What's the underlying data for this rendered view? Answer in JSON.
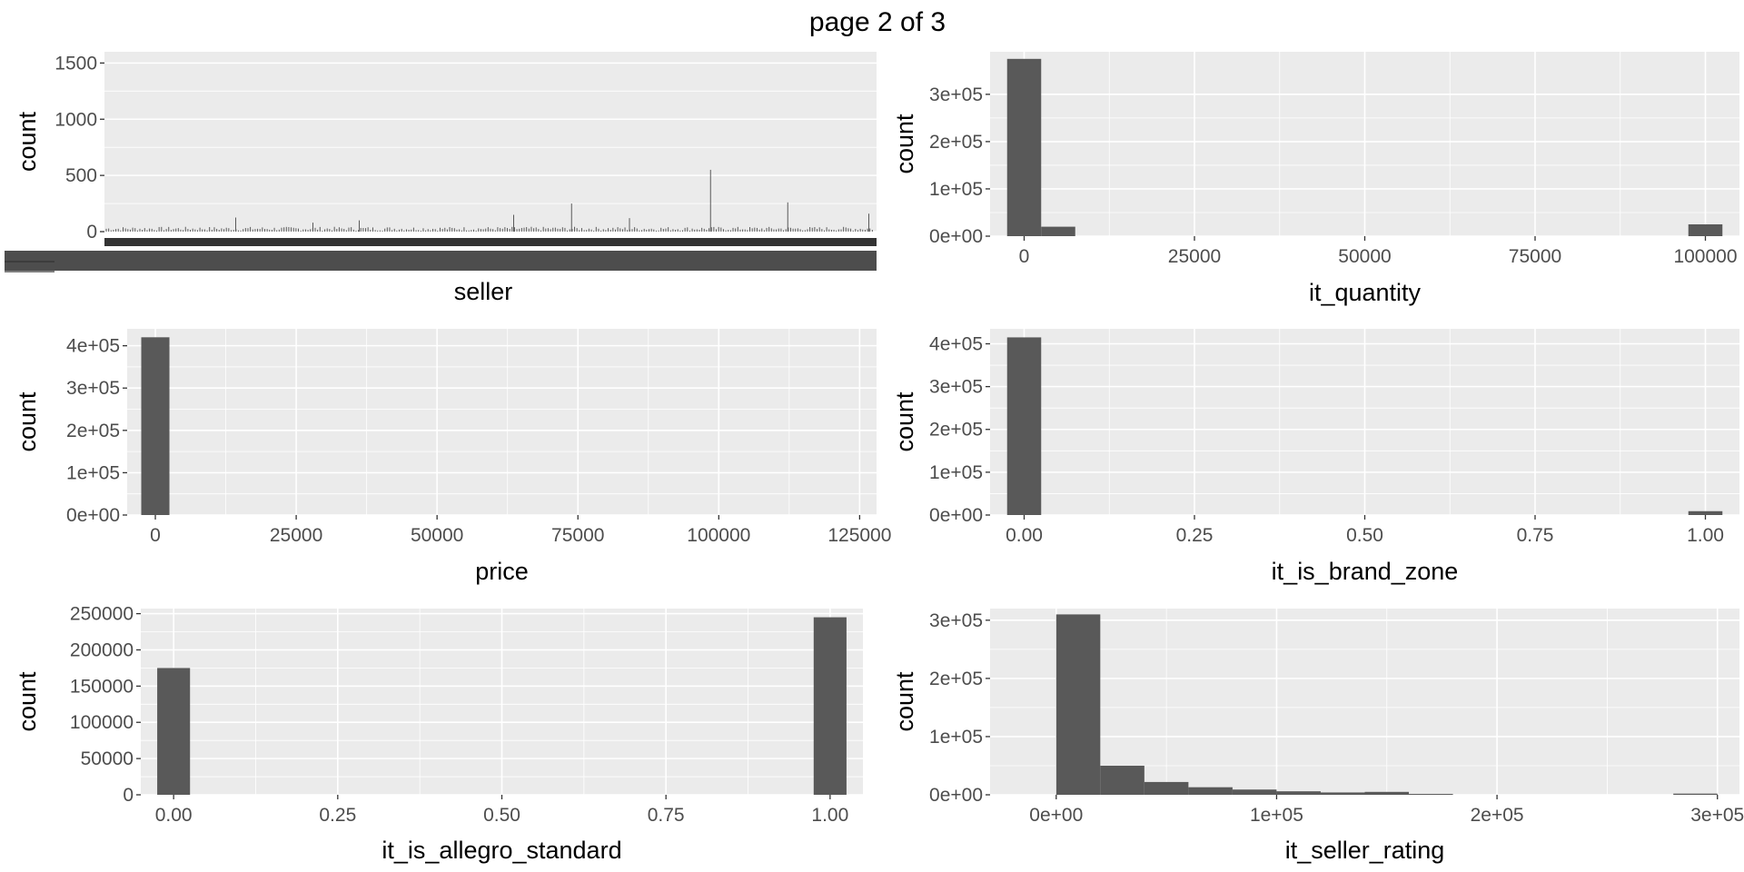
{
  "page": {
    "title": "page 2 of 3"
  },
  "colors": {
    "panel_bg": "#ebebeb",
    "bar_fill": "#595959",
    "grid": "#ffffff",
    "text": "#4d4d4d"
  },
  "chart_data": [
    {
      "id": "seller",
      "type": "bar",
      "xlabel": "seller",
      "ylabel": "count",
      "ylim": [
        0,
        1600
      ],
      "yticks": [
        0,
        500,
        1000,
        1500
      ],
      "ytick_labels": [
        "0",
        "500",
        "1000",
        "1500"
      ],
      "xtick_labels_note": "thousands of overlapping category labels rendered as a solid band",
      "notable_spikes": [
        {
          "position": 0.17,
          "value": 125
        },
        {
          "position": 0.27,
          "value": 80
        },
        {
          "position": 0.33,
          "value": 100
        },
        {
          "position": 0.53,
          "value": 150
        },
        {
          "position": 0.605,
          "value": 250
        },
        {
          "position": 0.68,
          "value": 120
        },
        {
          "position": 0.785,
          "value": 550
        },
        {
          "position": 0.885,
          "value": 260
        },
        {
          "position": 0.99,
          "value": 160
        }
      ]
    },
    {
      "id": "it_quantity",
      "type": "bar",
      "xlabel": "it_quantity",
      "ylabel": "count",
      "bin_width": 5000,
      "xlim": [
        -5000,
        105000
      ],
      "ylim": [
        0,
        390000
      ],
      "xticks": [
        0,
        25000,
        50000,
        75000,
        100000
      ],
      "xtick_labels": [
        "0",
        "25000",
        "50000",
        "75000",
        "100000"
      ],
      "yticks": [
        0,
        100000,
        200000,
        300000
      ],
      "ytick_labels": [
        "0e+00",
        "1e+05",
        "2e+05",
        "3e+05"
      ],
      "bins": [
        {
          "x": 0,
          "count": 375000
        },
        {
          "x": 5000,
          "count": 20000
        },
        {
          "x": 100000,
          "count": 25000
        }
      ]
    },
    {
      "id": "price",
      "type": "bar",
      "xlabel": "price",
      "ylabel": "count",
      "bin_width": 5000,
      "xlim": [
        -5000,
        128000
      ],
      "ylim": [
        0,
        440000
      ],
      "xticks": [
        0,
        25000,
        50000,
        75000,
        100000,
        125000
      ],
      "xtick_labels": [
        "0",
        "25000",
        "50000",
        "75000",
        "100000",
        "125000"
      ],
      "yticks": [
        0,
        100000,
        200000,
        300000,
        400000
      ],
      "ytick_labels": [
        "0e+00",
        "1e+05",
        "2e+05",
        "3e+05",
        "4e+05"
      ],
      "bins": [
        {
          "x": 0,
          "count": 420000
        }
      ]
    },
    {
      "id": "it_is_brand_zone",
      "type": "bar",
      "xlabel": "it_is_brand_zone",
      "ylabel": "count",
      "bin_width": 0.05,
      "xlim": [
        -0.05,
        1.05
      ],
      "ylim": [
        0,
        435000
      ],
      "xticks": [
        0,
        0.25,
        0.5,
        0.75,
        1
      ],
      "xtick_labels": [
        "0.00",
        "0.25",
        "0.50",
        "0.75",
        "1.00"
      ],
      "yticks": [
        0,
        100000,
        200000,
        300000,
        400000
      ],
      "ytick_labels": [
        "0e+00",
        "1e+05",
        "2e+05",
        "3e+05",
        "4e+05"
      ],
      "bins": [
        {
          "x": 0,
          "count": 415000
        },
        {
          "x": 1,
          "count": 9000
        }
      ]
    },
    {
      "id": "it_is_allegro_standard",
      "type": "bar",
      "xlabel": "it_is_allegro_standard",
      "ylabel": "count",
      "bin_width": 0.05,
      "xlim": [
        -0.05,
        1.05
      ],
      "ylim": [
        0,
        257000
      ],
      "xticks": [
        0,
        0.25,
        0.5,
        0.75,
        1
      ],
      "xtick_labels": [
        "0.00",
        "0.25",
        "0.50",
        "0.75",
        "1.00"
      ],
      "yticks": [
        0,
        50000,
        100000,
        150000,
        200000,
        250000
      ],
      "ytick_labels": [
        "0",
        "50000",
        "100000",
        "150000",
        "200000",
        "250000"
      ],
      "bins": [
        {
          "x": 0,
          "count": 175000
        },
        {
          "x": 1,
          "count": 245000
        }
      ]
    },
    {
      "id": "it_seller_rating",
      "type": "bar",
      "xlabel": "it_seller_rating",
      "ylabel": "count",
      "bin_width": 20000,
      "xlim": [
        -30000,
        310000
      ],
      "ylim": [
        0,
        320000
      ],
      "xticks": [
        0,
        100000,
        200000,
        300000
      ],
      "xtick_labels": [
        "0e+00",
        "1e+05",
        "2e+05",
        "3e+05"
      ],
      "yticks": [
        0,
        100000,
        200000,
        300000
      ],
      "ytick_labels": [
        "0e+00",
        "1e+05",
        "2e+05",
        "3e+05"
      ],
      "bins": [
        {
          "x": 10000,
          "count": 310000
        },
        {
          "x": 30000,
          "count": 50000
        },
        {
          "x": 50000,
          "count": 22000
        },
        {
          "x": 70000,
          "count": 13000
        },
        {
          "x": 90000,
          "count": 9000
        },
        {
          "x": 110000,
          "count": 6000
        },
        {
          "x": 130000,
          "count": 4000
        },
        {
          "x": 150000,
          "count": 5000
        },
        {
          "x": 170000,
          "count": 1500
        },
        {
          "x": 290000,
          "count": 2000
        }
      ]
    }
  ]
}
